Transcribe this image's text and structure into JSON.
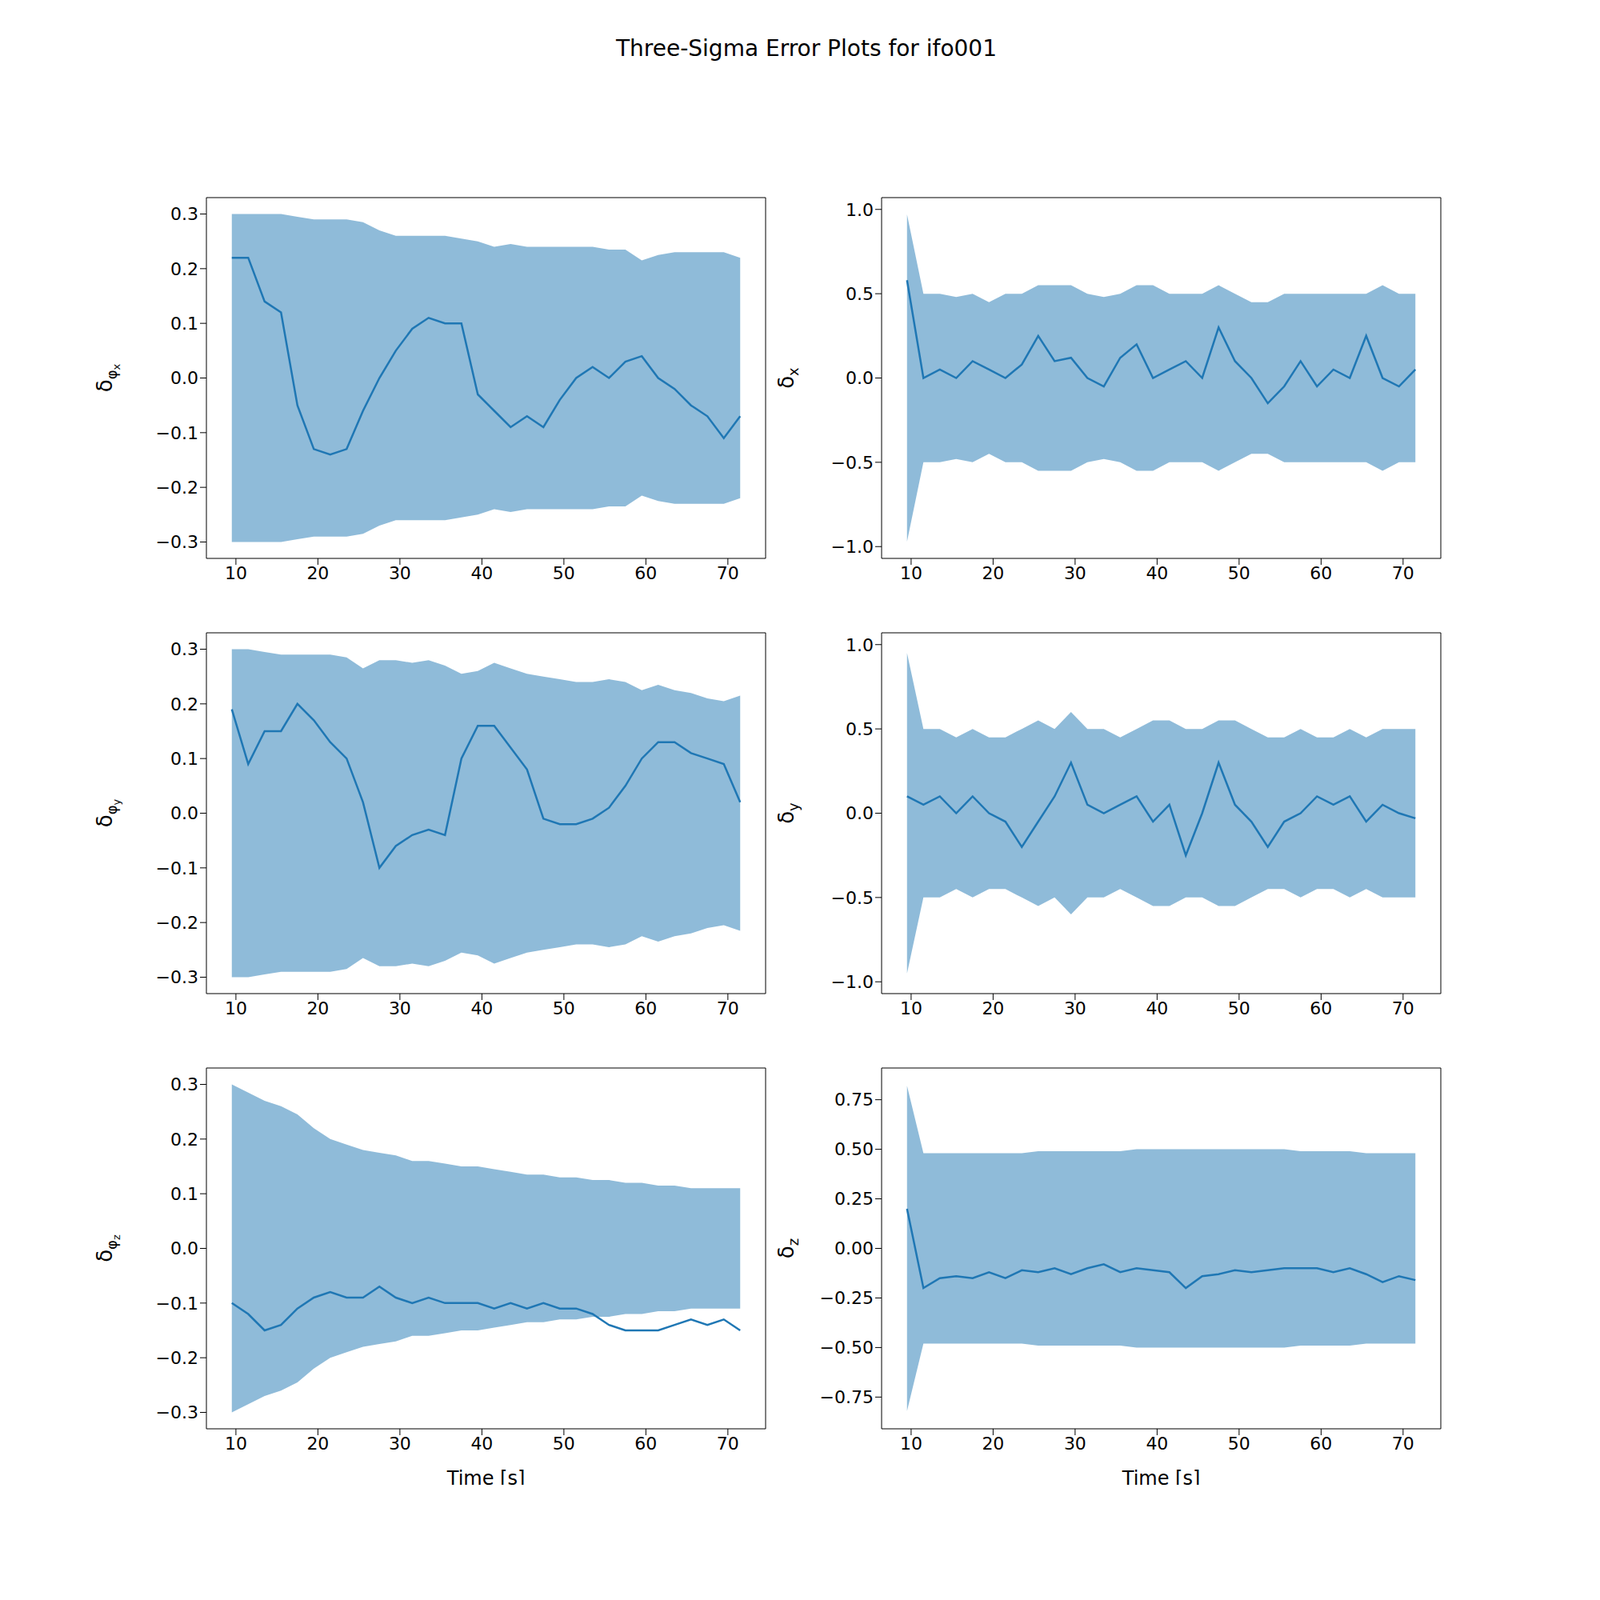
{
  "title": "Three-Sigma Error Plots for ifo001",
  "chart_data": [
    {
      "type": "line",
      "ylabel": [
        "δ",
        "φ",
        "x"
      ],
      "color": "#1f77b4",
      "x": [
        9.5,
        11.5,
        13.5,
        15.5,
        17.5,
        19.5,
        21.5,
        23.5,
        25.5,
        27.5,
        29.5,
        31.5,
        33.5,
        35.5,
        37.5,
        39.5,
        41.5,
        43.5,
        45.5,
        47.5,
        49.5,
        51.5,
        53.5,
        55.5,
        57.5,
        59.5,
        61.5,
        63.5,
        65.5,
        67.5,
        69.5,
        71.5
      ],
      "values": [
        0.22,
        0.22,
        0.14,
        0.12,
        -0.05,
        -0.13,
        -0.14,
        -0.13,
        -0.06,
        0.0,
        0.05,
        0.09,
        0.11,
        0.1,
        0.1,
        -0.03,
        -0.06,
        -0.09,
        -0.07,
        -0.09,
        -0.04,
        0.0,
        0.02,
        0.0,
        0.03,
        0.04,
        0.0,
        -0.02,
        -0.05,
        -0.07,
        -0.11,
        -0.07
      ],
      "three_sigma": [
        0.3,
        0.3,
        0.3,
        0.3,
        0.295,
        0.29,
        0.29,
        0.29,
        0.285,
        0.27,
        0.26,
        0.26,
        0.26,
        0.26,
        0.255,
        0.25,
        0.24,
        0.245,
        0.24,
        0.24,
        0.24,
        0.24,
        0.24,
        0.235,
        0.235,
        0.215,
        0.225,
        0.23,
        0.23,
        0.23,
        0.23,
        0.22
      ],
      "xlim": [
        6.4,
        74.6
      ],
      "xticks": [
        10,
        20,
        30,
        40,
        50,
        60,
        70
      ],
      "ylim": [
        -0.33,
        0.33
      ],
      "yticks": [
        {
          "value": -0.3,
          "label": "−0.3"
        },
        {
          "value": -0.2,
          "label": "−0.2"
        },
        {
          "value": -0.1,
          "label": "−0.1"
        },
        {
          "value": 0,
          "label": "0.0"
        },
        0.1,
        0.2,
        0.3
      ]
    },
    {
      "type": "line",
      "ylabel": [
        "δ",
        "x"
      ],
      "color": "#1f77b4",
      "x": [
        9.5,
        11.5,
        13.5,
        15.5,
        17.5,
        19.5,
        21.5,
        23.5,
        25.5,
        27.5,
        29.5,
        31.5,
        33.5,
        35.5,
        37.5,
        39.5,
        41.5,
        43.5,
        45.5,
        47.5,
        49.5,
        51.5,
        53.5,
        55.5,
        57.5,
        59.5,
        61.5,
        63.5,
        65.5,
        67.5,
        69.5,
        71.5
      ],
      "values": [
        0.58,
        0.0,
        0.05,
        0.0,
        0.1,
        0.05,
        0.0,
        0.08,
        0.25,
        0.1,
        0.12,
        0.0,
        -0.05,
        0.12,
        0.2,
        0.0,
        0.05,
        0.1,
        0.0,
        0.3,
        0.1,
        0.0,
        -0.15,
        -0.05,
        0.1,
        -0.05,
        0.05,
        0.0,
        0.25,
        0.0,
        -0.05,
        0.05
      ],
      "three_sigma": [
        0.97,
        0.5,
        0.5,
        0.48,
        0.5,
        0.45,
        0.5,
        0.5,
        0.55,
        0.55,
        0.55,
        0.5,
        0.48,
        0.5,
        0.55,
        0.55,
        0.5,
        0.5,
        0.5,
        0.55,
        0.5,
        0.45,
        0.45,
        0.5,
        0.5,
        0.5,
        0.5,
        0.5,
        0.5,
        0.55,
        0.5,
        0.5
      ],
      "xlim": [
        6.4,
        74.6
      ],
      "xticks": [
        10,
        20,
        30,
        40,
        50,
        60,
        70
      ],
      "ylim": [
        -1.07,
        1.07
      ],
      "yticks": [
        {
          "value": -1,
          "label": "−1.0"
        },
        {
          "value": -0.5,
          "label": "−0.5"
        },
        {
          "value": 0,
          "label": "0.0"
        },
        0.5,
        {
          "value": 1,
          "label": "1.0"
        }
      ]
    },
    {
      "type": "line",
      "ylabel": [
        "δ",
        "φ",
        "y"
      ],
      "color": "#1f77b4",
      "x": [
        9.5,
        11.5,
        13.5,
        15.5,
        17.5,
        19.5,
        21.5,
        23.5,
        25.5,
        27.5,
        29.5,
        31.5,
        33.5,
        35.5,
        37.5,
        39.5,
        41.5,
        43.5,
        45.5,
        47.5,
        49.5,
        51.5,
        53.5,
        55.5,
        57.5,
        59.5,
        61.5,
        63.5,
        65.5,
        67.5,
        69.5,
        71.5
      ],
      "values": [
        0.19,
        0.09,
        0.15,
        0.15,
        0.2,
        0.17,
        0.13,
        0.1,
        0.02,
        -0.1,
        -0.06,
        -0.04,
        -0.03,
        -0.04,
        0.1,
        0.16,
        0.16,
        0.12,
        0.08,
        -0.01,
        -0.02,
        -0.02,
        -0.01,
        0.01,
        0.05,
        0.1,
        0.13,
        0.13,
        0.11,
        0.1,
        0.09,
        0.02
      ],
      "three_sigma": [
        0.3,
        0.3,
        0.295,
        0.29,
        0.29,
        0.29,
        0.29,
        0.285,
        0.265,
        0.28,
        0.28,
        0.275,
        0.28,
        0.27,
        0.255,
        0.26,
        0.275,
        0.265,
        0.255,
        0.25,
        0.245,
        0.24,
        0.24,
        0.245,
        0.24,
        0.225,
        0.235,
        0.225,
        0.22,
        0.21,
        0.205,
        0.215
      ],
      "xlim": [
        6.4,
        74.6
      ],
      "xticks": [
        10,
        20,
        30,
        40,
        50,
        60,
        70
      ],
      "ylim": [
        -0.33,
        0.33
      ],
      "yticks": [
        {
          "value": -0.3,
          "label": "−0.3"
        },
        {
          "value": -0.2,
          "label": "−0.2"
        },
        {
          "value": -0.1,
          "label": "−0.1"
        },
        {
          "value": 0,
          "label": "0.0"
        },
        0.1,
        0.2,
        0.3
      ]
    },
    {
      "type": "line",
      "ylabel": [
        "δ",
        "y"
      ],
      "color": "#1f77b4",
      "x": [
        9.5,
        11.5,
        13.5,
        15.5,
        17.5,
        19.5,
        21.5,
        23.5,
        25.5,
        27.5,
        29.5,
        31.5,
        33.5,
        35.5,
        37.5,
        39.5,
        41.5,
        43.5,
        45.5,
        47.5,
        49.5,
        51.5,
        53.5,
        55.5,
        57.5,
        59.5,
        61.5,
        63.5,
        65.5,
        67.5,
        69.5,
        71.5
      ],
      "values": [
        0.1,
        0.05,
        0.1,
        0.0,
        0.1,
        0.0,
        -0.05,
        -0.2,
        -0.05,
        0.1,
        0.3,
        0.05,
        0.0,
        0.05,
        0.1,
        -0.05,
        0.05,
        -0.25,
        0.0,
        0.3,
        0.05,
        -0.05,
        -0.2,
        -0.05,
        0.0,
        0.1,
        0.05,
        0.1,
        -0.05,
        0.05,
        0.0,
        -0.03
      ],
      "three_sigma": [
        0.95,
        0.5,
        0.5,
        0.45,
        0.5,
        0.45,
        0.45,
        0.5,
        0.55,
        0.5,
        0.6,
        0.5,
        0.5,
        0.45,
        0.5,
        0.55,
        0.55,
        0.5,
        0.5,
        0.55,
        0.55,
        0.5,
        0.45,
        0.45,
        0.5,
        0.45,
        0.45,
        0.5,
        0.45,
        0.5,
        0.5,
        0.5
      ],
      "xlim": [
        6.4,
        74.6
      ],
      "xticks": [
        10,
        20,
        30,
        40,
        50,
        60,
        70
      ],
      "ylim": [
        -1.07,
        1.07
      ],
      "yticks": [
        {
          "value": -1,
          "label": "−1.0"
        },
        {
          "value": -0.5,
          "label": "−0.5"
        },
        {
          "value": 0,
          "label": "0.0"
        },
        0.5,
        {
          "value": 1,
          "label": "1.0"
        }
      ]
    },
    {
      "type": "line",
      "ylabel": [
        "δ",
        "φ",
        "z"
      ],
      "xlabel": "Time [s]",
      "color": "#1f77b4",
      "x": [
        9.5,
        11.5,
        13.5,
        15.5,
        17.5,
        19.5,
        21.5,
        23.5,
        25.5,
        27.5,
        29.5,
        31.5,
        33.5,
        35.5,
        37.5,
        39.5,
        41.5,
        43.5,
        45.5,
        47.5,
        49.5,
        51.5,
        53.5,
        55.5,
        57.5,
        59.5,
        61.5,
        63.5,
        65.5,
        67.5,
        69.5,
        71.5
      ],
      "values": [
        -0.1,
        -0.12,
        -0.15,
        -0.14,
        -0.11,
        -0.09,
        -0.08,
        -0.09,
        -0.09,
        -0.07,
        -0.09,
        -0.1,
        -0.09,
        -0.1,
        -0.1,
        -0.1,
        -0.11,
        -0.1,
        -0.11,
        -0.1,
        -0.11,
        -0.11,
        -0.12,
        -0.14,
        -0.15,
        -0.15,
        -0.15,
        -0.14,
        -0.13,
        -0.14,
        -0.13,
        -0.15
      ],
      "three_sigma": [
        0.3,
        0.285,
        0.27,
        0.26,
        0.245,
        0.22,
        0.2,
        0.19,
        0.18,
        0.175,
        0.17,
        0.16,
        0.16,
        0.155,
        0.15,
        0.15,
        0.145,
        0.14,
        0.135,
        0.135,
        0.13,
        0.13,
        0.125,
        0.125,
        0.12,
        0.12,
        0.115,
        0.115,
        0.11,
        0.11,
        0.11,
        0.11
      ],
      "xlim": [
        6.4,
        74.6
      ],
      "xticks": [
        10,
        20,
        30,
        40,
        50,
        60,
        70
      ],
      "ylim": [
        -0.33,
        0.33
      ],
      "yticks": [
        {
          "value": -0.3,
          "label": "−0.3"
        },
        {
          "value": -0.2,
          "label": "−0.2"
        },
        {
          "value": -0.1,
          "label": "−0.1"
        },
        {
          "value": 0,
          "label": "0.0"
        },
        0.1,
        0.2,
        0.3
      ]
    },
    {
      "type": "line",
      "ylabel": [
        "δ",
        "z"
      ],
      "xlabel": "Time [s]",
      "color": "#1f77b4",
      "x": [
        9.5,
        11.5,
        13.5,
        15.5,
        17.5,
        19.5,
        21.5,
        23.5,
        25.5,
        27.5,
        29.5,
        31.5,
        33.5,
        35.5,
        37.5,
        39.5,
        41.5,
        43.5,
        45.5,
        47.5,
        49.5,
        51.5,
        53.5,
        55.5,
        57.5,
        59.5,
        61.5,
        63.5,
        65.5,
        67.5,
        69.5,
        71.5
      ],
      "values": [
        0.2,
        -0.2,
        -0.15,
        -0.14,
        -0.15,
        -0.12,
        -0.15,
        -0.11,
        -0.12,
        -0.1,
        -0.13,
        -0.1,
        -0.08,
        -0.12,
        -0.1,
        -0.11,
        -0.12,
        -0.2,
        -0.14,
        -0.13,
        -0.11,
        -0.12,
        -0.11,
        -0.1,
        -0.1,
        -0.1,
        -0.12,
        -0.1,
        -0.13,
        -0.17,
        -0.14,
        -0.16
      ],
      "three_sigma": [
        0.82,
        0.48,
        0.48,
        0.48,
        0.48,
        0.48,
        0.48,
        0.48,
        0.49,
        0.49,
        0.49,
        0.49,
        0.49,
        0.49,
        0.5,
        0.5,
        0.5,
        0.5,
        0.5,
        0.5,
        0.5,
        0.5,
        0.5,
        0.5,
        0.49,
        0.49,
        0.49,
        0.49,
        0.48,
        0.48,
        0.48,
        0.48
      ],
      "xlim": [
        6.4,
        74.6
      ],
      "xticks": [
        10,
        20,
        30,
        40,
        50,
        60,
        70
      ],
      "ylim": [
        -0.91,
        0.91
      ],
      "yticks": [
        {
          "value": -0.75,
          "label": "−0.75"
        },
        {
          "value": -0.5,
          "label": "−0.50"
        },
        {
          "value": -0.25,
          "label": "−0.25"
        },
        {
          "value": 0,
          "label": "0.00"
        },
        0.25,
        {
          "value": 0.5,
          "label": "0.50"
        },
        0.75
      ]
    }
  ]
}
